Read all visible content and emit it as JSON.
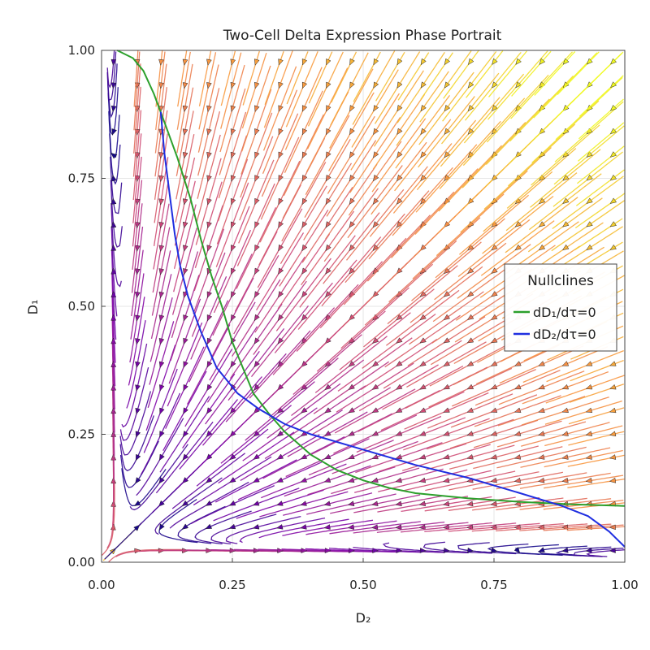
{
  "chart_data": {
    "type": "streamplot",
    "title": "Two-Cell Delta Expression Phase Portrait",
    "xlabel": "D₂",
    "ylabel": "D₁",
    "xlim": [
      0,
      1
    ],
    "ylim": [
      0,
      1
    ],
    "grid": true,
    "xticks": [
      0,
      0.25,
      0.5,
      0.75,
      1.0
    ],
    "yticks": [
      0,
      0.25,
      0.5,
      0.75,
      1.0
    ],
    "xtick_labels": [
      "0.00",
      "0.25",
      "0.50",
      "0.75",
      "1.00"
    ],
    "ytick_labels": [
      "0.00",
      "0.25",
      "0.50",
      "0.75",
      "1.00"
    ],
    "colormap": "plasma (speed: dark purple = slow, yellow = fast)",
    "legend": {
      "title": "Nullclines",
      "placement": "right",
      "entries": [
        {
          "label": "dD₁/dτ=0",
          "color": "#2ca02c"
        },
        {
          "label": "dD₂/dτ=0",
          "color": "#1f2ee0"
        }
      ]
    },
    "series": [
      {
        "name": "dD₁/dτ=0",
        "color": "#2ca02c",
        "points": [
          [
            0.03,
            1.0
          ],
          [
            0.06,
            0.985
          ],
          [
            0.08,
            0.96
          ],
          [
            0.1,
            0.915
          ],
          [
            0.12,
            0.86
          ],
          [
            0.145,
            0.79
          ],
          [
            0.17,
            0.71
          ],
          [
            0.19,
            0.63
          ],
          [
            0.21,
            0.56
          ],
          [
            0.23,
            0.5
          ],
          [
            0.25,
            0.43
          ],
          [
            0.27,
            0.38
          ],
          [
            0.29,
            0.33
          ],
          [
            0.32,
            0.29
          ],
          [
            0.35,
            0.255
          ],
          [
            0.4,
            0.21
          ],
          [
            0.45,
            0.18
          ],
          [
            0.5,
            0.16
          ],
          [
            0.55,
            0.145
          ],
          [
            0.6,
            0.135
          ],
          [
            0.7,
            0.125
          ],
          [
            0.8,
            0.118
          ],
          [
            0.9,
            0.113
          ],
          [
            1.0,
            0.11
          ]
        ]
      },
      {
        "name": "dD₂/dτ=0",
        "color": "#1f2ee0",
        "points": [
          [
            0.113,
            0.88
          ],
          [
            0.12,
            0.8
          ],
          [
            0.13,
            0.72
          ],
          [
            0.14,
            0.64
          ],
          [
            0.15,
            0.58
          ],
          [
            0.165,
            0.52
          ],
          [
            0.19,
            0.45
          ],
          [
            0.22,
            0.38
          ],
          [
            0.26,
            0.33
          ],
          [
            0.3,
            0.3
          ],
          [
            0.35,
            0.27
          ],
          [
            0.4,
            0.25
          ],
          [
            0.5,
            0.22
          ],
          [
            0.6,
            0.19
          ],
          [
            0.7,
            0.165
          ],
          [
            0.8,
            0.135
          ],
          [
            0.88,
            0.11
          ],
          [
            0.93,
            0.09
          ],
          [
            0.97,
            0.06
          ],
          [
            1.0,
            0.03
          ]
        ]
      }
    ],
    "fixed_points": [
      [
        0.115,
        0.885
      ],
      [
        0.27,
        0.35
      ],
      [
        0.885,
        0.113
      ]
    ]
  }
}
